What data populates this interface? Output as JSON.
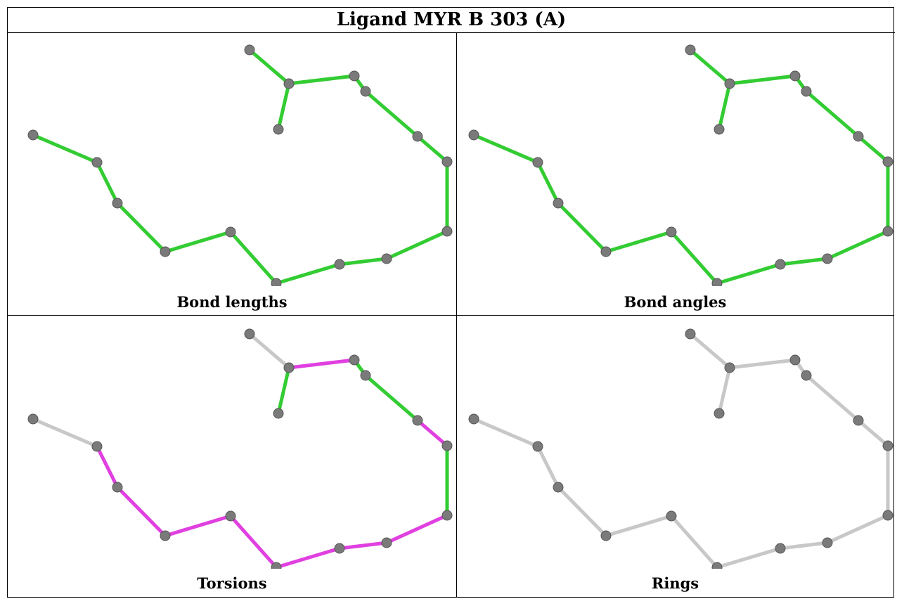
{
  "title": "Ligand MYR B 303 (A)",
  "colors": {
    "atom": "#7a7a7a",
    "good": "#33cc33",
    "outlier": "#e040e0",
    "neutral": "#c8c8c8"
  },
  "panels": [
    {
      "caption": "Bond lengths",
      "bond_colors": [
        "good",
        "good",
        "good",
        "good",
        "good",
        "good",
        "good",
        "good",
        "good",
        "good",
        "good",
        "good",
        "good",
        "good",
        "good",
        "good"
      ]
    },
    {
      "caption": "Bond angles",
      "bond_colors": [
        "good",
        "good",
        "good",
        "good",
        "good",
        "good",
        "good",
        "good",
        "good",
        "good",
        "good",
        "good",
        "good",
        "good",
        "good",
        "good"
      ]
    },
    {
      "caption": "Torsions",
      "bond_colors": [
        "neutral",
        "good",
        "outlier",
        "good",
        "good",
        "outlier",
        "good",
        "outlier",
        "outlier",
        "outlier",
        "outlier",
        "outlier",
        "outlier",
        "outlier",
        "neutral",
        "neutral"
      ]
    },
    {
      "caption": "Rings",
      "bond_colors": [
        "neutral",
        "neutral",
        "neutral",
        "neutral",
        "neutral",
        "neutral",
        "neutral",
        "neutral",
        "neutral",
        "neutral",
        "neutral",
        "neutral",
        "neutral",
        "neutral",
        "neutral",
        "neutral"
      ]
    }
  ]
}
